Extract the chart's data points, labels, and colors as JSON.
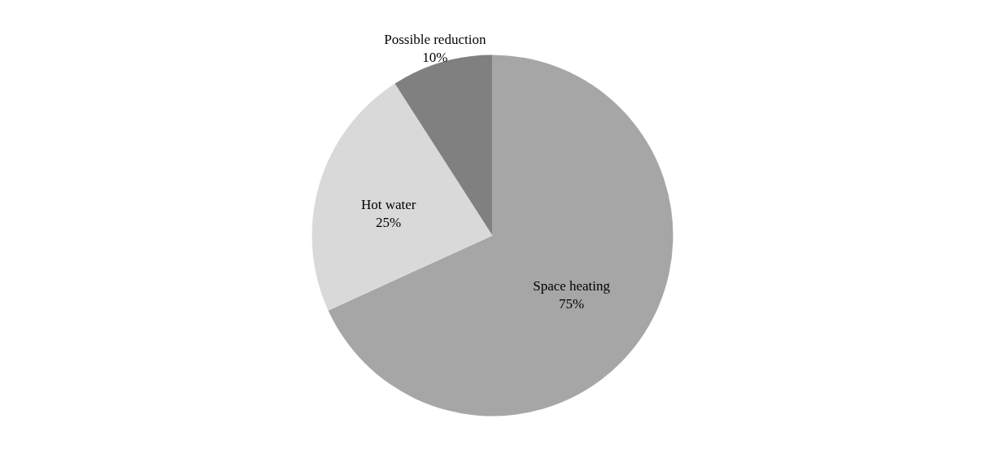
{
  "chart_data": {
    "type": "pie",
    "categories": [
      "Space heating",
      "Hot water",
      "Possible reduction"
    ],
    "values": [
      75,
      25,
      10
    ],
    "value_labels": [
      "75%",
      "25%",
      "10%"
    ],
    "colors": [
      "#a6a6a6",
      "#d9d9d9",
      "#808080"
    ],
    "legend": false
  }
}
